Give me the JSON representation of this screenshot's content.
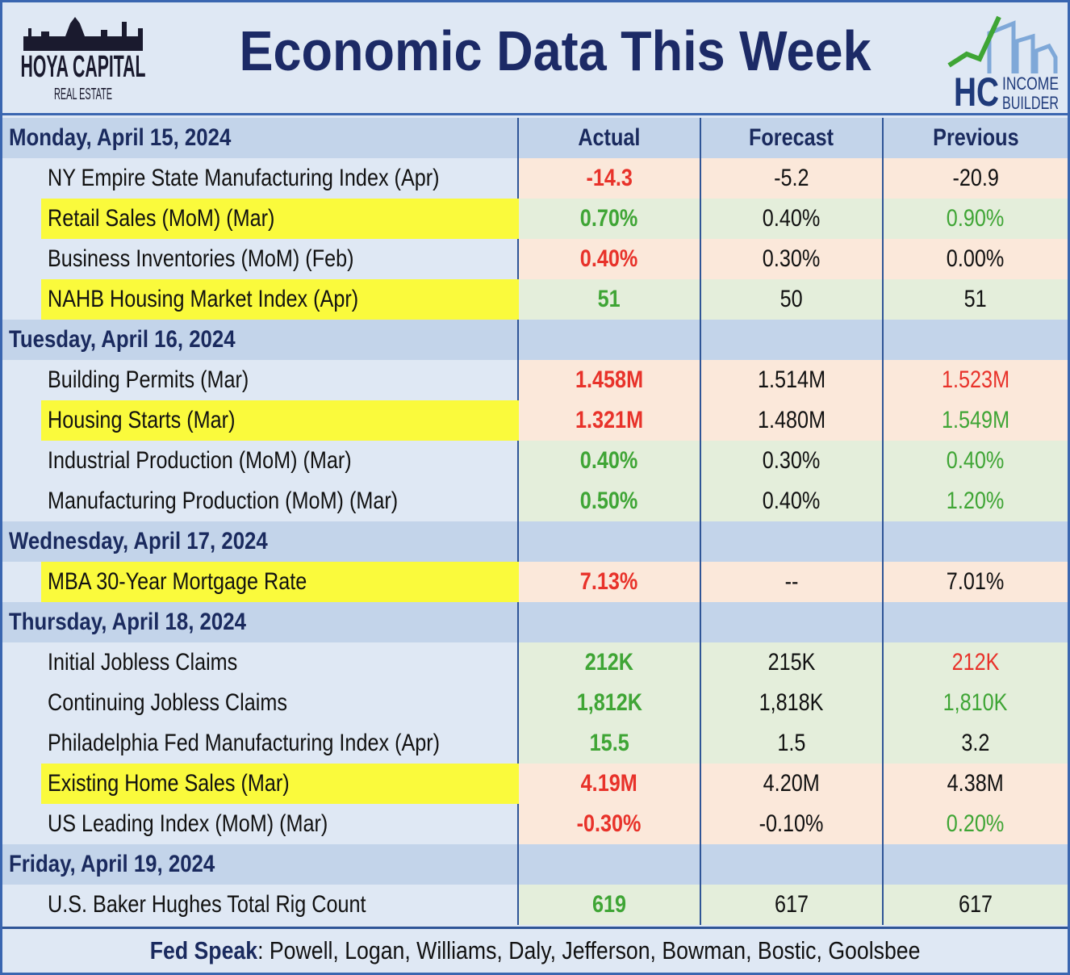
{
  "header": {
    "logo_left": {
      "line1": "HOYA CAPITAL",
      "line2": "REAL ESTATE"
    },
    "title": "Economic Data This Week",
    "logo_right": {
      "mark": "HC",
      "line1": "INCOME",
      "line2": "BUILDER"
    }
  },
  "table": {
    "columns": [
      "Actual",
      "Forecast",
      "Previous"
    ],
    "sections": [
      {
        "day": "Monday, April 15, 2024",
        "rows": [
          {
            "name": "NY Empire State Manufacturing Index (Apr)",
            "highlight": false,
            "tone": "bad",
            "cells": [
              "-14.3",
              "-5.2",
              "-20.9"
            ],
            "cell_colors": [
              "red",
              "black",
              "black"
            ]
          },
          {
            "name": "Retail Sales (MoM) (Mar)",
            "highlight": true,
            "tone": "good",
            "cells": [
              "0.70%",
              "0.40%",
              "0.90%"
            ],
            "cell_colors": [
              "green",
              "black",
              "green"
            ]
          },
          {
            "name": "Business Inventories (MoM) (Feb)",
            "highlight": false,
            "tone": "bad",
            "cells": [
              "0.40%",
              "0.30%",
              "0.00%"
            ],
            "cell_colors": [
              "red",
              "black",
              "black"
            ]
          },
          {
            "name": "NAHB Housing Market Index (Apr)",
            "highlight": true,
            "tone": "good",
            "cells": [
              "51",
              "50",
              "51"
            ],
            "cell_colors": [
              "green",
              "black",
              "black"
            ]
          }
        ]
      },
      {
        "day": "Tuesday, April 16, 2024",
        "rows": [
          {
            "name": "Building Permits (Mar)",
            "highlight": false,
            "tone": "bad",
            "cells": [
              "1.458M",
              "1.514M",
              "1.523M"
            ],
            "cell_colors": [
              "red",
              "black",
              "red"
            ]
          },
          {
            "name": "Housing Starts (Mar)",
            "highlight": true,
            "tone": "bad",
            "cells": [
              "1.321M",
              "1.480M",
              "1.549M"
            ],
            "cell_colors": [
              "red",
              "black",
              "green"
            ]
          },
          {
            "name": "Industrial Production (MoM) (Mar)",
            "highlight": false,
            "tone": "good",
            "cells": [
              "0.40%",
              "0.30%",
              "0.40%"
            ],
            "cell_colors": [
              "green",
              "black",
              "green"
            ]
          },
          {
            "name": "Manufacturing Production (MoM) (Mar)",
            "highlight": false,
            "tone": "good",
            "cells": [
              "0.50%",
              "0.40%",
              "1.20%"
            ],
            "cell_colors": [
              "green",
              "black",
              "green"
            ]
          }
        ]
      },
      {
        "day": "Wednesday, April 17, 2024",
        "rows": [
          {
            "name": "MBA 30-Year Mortgage Rate",
            "highlight": true,
            "tone": "bad",
            "cells": [
              "7.13%",
              "--",
              "7.01%"
            ],
            "cell_colors": [
              "red",
              "black",
              "black"
            ]
          }
        ]
      },
      {
        "day": "Thursday, April 18, 2024",
        "rows": [
          {
            "name": "Initial Jobless Claims",
            "highlight": false,
            "tone": "good",
            "cells": [
              "212K",
              "215K",
              "212K"
            ],
            "cell_colors": [
              "green",
              "black",
              "red"
            ]
          },
          {
            "name": "Continuing Jobless Claims",
            "highlight": false,
            "tone": "good",
            "cells": [
              "1,812K",
              "1,818K",
              "1,810K"
            ],
            "cell_colors": [
              "green",
              "black",
              "green"
            ]
          },
          {
            "name": "Philadelphia Fed Manufacturing Index (Apr)",
            "highlight": false,
            "tone": "good",
            "cells": [
              "15.5",
              "1.5",
              "3.2"
            ],
            "cell_colors": [
              "green",
              "black",
              "black"
            ]
          },
          {
            "name": "Existing Home Sales (Mar)",
            "highlight": true,
            "tone": "bad",
            "cells": [
              "4.19M",
              "4.20M",
              "4.38M"
            ],
            "cell_colors": [
              "red",
              "black",
              "black"
            ]
          },
          {
            "name": "US Leading Index (MoM) (Mar)",
            "highlight": false,
            "tone": "bad",
            "cells": [
              "-0.30%",
              "-0.10%",
              "0.20%"
            ],
            "cell_colors": [
              "red",
              "black",
              "green"
            ]
          }
        ]
      },
      {
        "day": "Friday, April 19, 2024",
        "rows": [
          {
            "name": "U.S. Baker Hughes Total Rig Count",
            "highlight": false,
            "tone": "good",
            "cells": [
              "619",
              "617",
              "617"
            ],
            "cell_colors": [
              "green",
              "black",
              "black"
            ]
          }
        ]
      }
    ]
  },
  "footer": {
    "label": "Fed Speak",
    "text": ": Powell, Logan, Williams, Daly, Jefferson, Bowman, Bostic, Goolsbee"
  }
}
